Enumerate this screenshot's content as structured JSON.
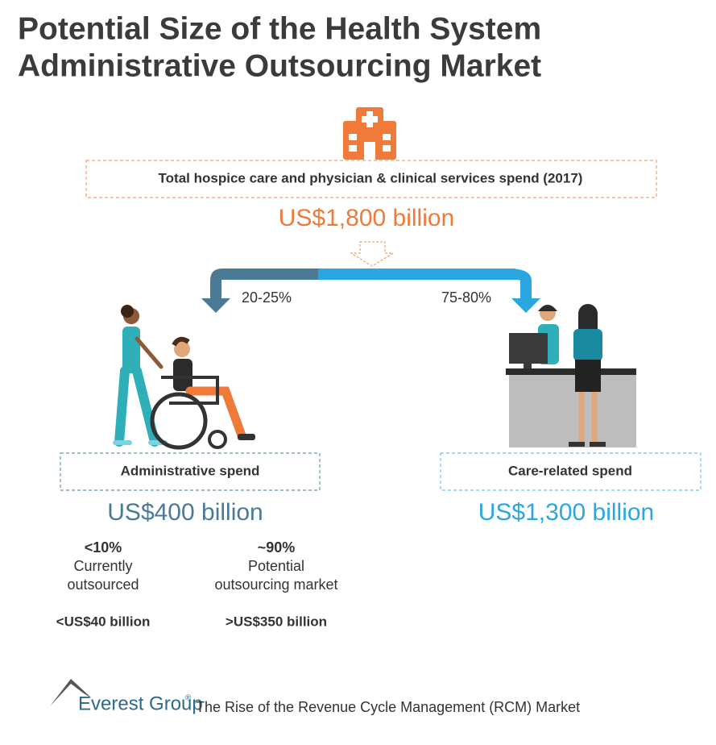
{
  "title": [
    "Potential Size of the Health System",
    "Administrative Outsourcing Market"
  ],
  "total": {
    "label": "Total hospice care and physician & clinical services spend (2017)",
    "value": "US$1,800 billion"
  },
  "split": {
    "left": "20-25%",
    "right": "75-80%"
  },
  "administrative": {
    "label": "Administrative spend",
    "value": "US$400 billion",
    "breakdown": [
      {
        "share": "<10%",
        "description": [
          "Currently",
          "outsourced"
        ],
        "amount": "<US$40 billion"
      },
      {
        "share": "~90%",
        "description": [
          "Potential",
          "outsourcing market"
        ],
        "amount": ">US$350 billion"
      }
    ]
  },
  "care": {
    "label": "Care-related spend",
    "value": "US$1,300 billion"
  },
  "footer": {
    "brand": "Everest Group",
    "trademark": "®",
    "source": "The Rise of the Revenue Cycle Management (RCM) Market"
  }
}
